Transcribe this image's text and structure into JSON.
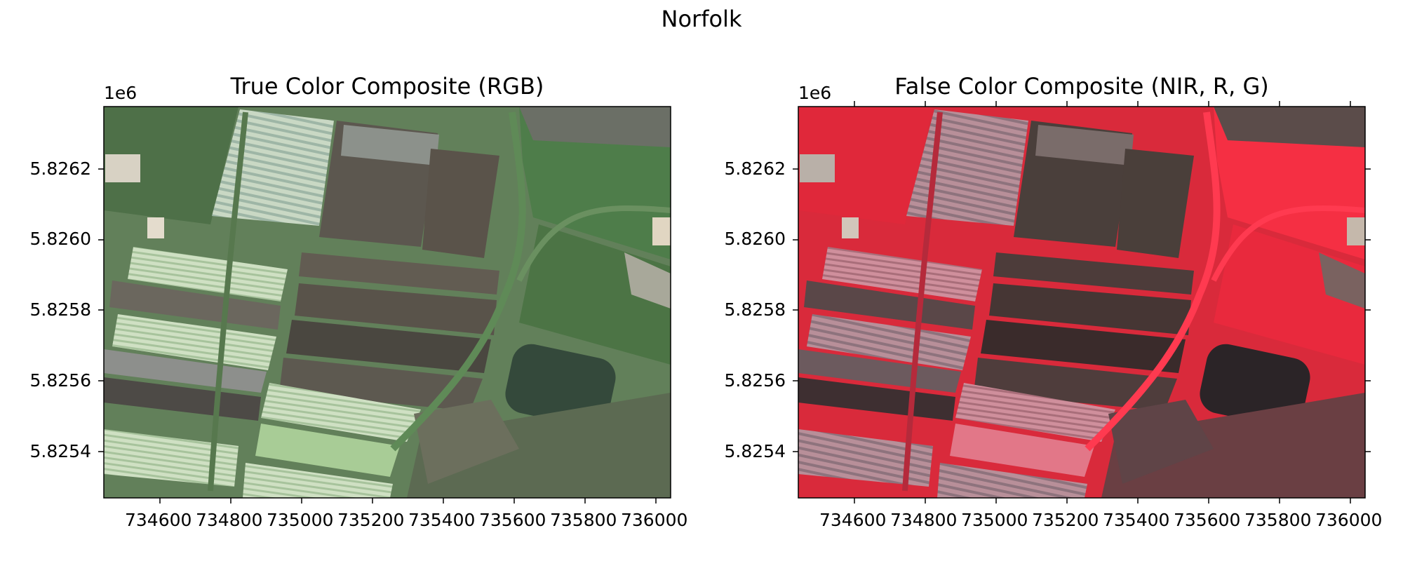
{
  "figure": {
    "suptitle": "Norfolk"
  },
  "panels": [
    {
      "title": "True Color Composite (RGB)",
      "offset_text": "1e6",
      "yticks": [
        "5.8262",
        "5.8260",
        "5.8258",
        "5.8256",
        "5.8254"
      ],
      "xticks": [
        "734600",
        "734800",
        "735000",
        "735200",
        "735400",
        "735600",
        "735800",
        "736000"
      ],
      "image": "true-color satellite image of farmland",
      "colors": {
        "base": "#5f7c57",
        "field_dark": "#5b554d",
        "strip_light": "#c9d8c4",
        "pond": "#33473a",
        "road": "#4f6f4a"
      }
    },
    {
      "title": "False Color Composite (NIR, R, G)",
      "offset_text": "1e6",
      "yticks": [
        "5.8262",
        "5.8260",
        "5.8258",
        "5.8256",
        "5.8254"
      ],
      "xticks": [
        "734600",
        "734800",
        "735000",
        "735200",
        "735400",
        "735600",
        "735800",
        "736000"
      ],
      "image": "false-color satellite image of farmland",
      "colors": {
        "base": "#e8283a",
        "field_dark": "#4a3e3b",
        "strip_light": "#c79aa4",
        "pond": "#2a2427",
        "road": "#b0273a"
      }
    }
  ]
}
